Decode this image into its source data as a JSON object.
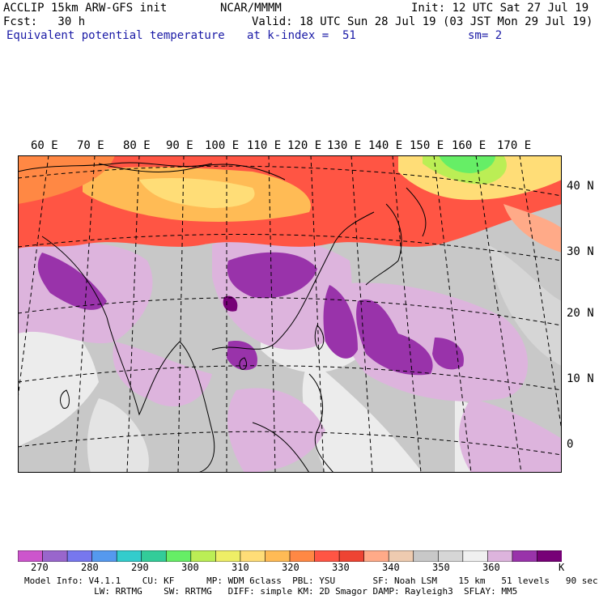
{
  "header": {
    "model": "ACCLIP 15km ARW-GFS init",
    "org": "NCAR/MMMM",
    "init": "Init: 12 UTC Sat 27 Jul 19",
    "fcst": "Fcst:   30 h",
    "valid": "Valid: 18 UTC Sun 28 Jul 19 (03 JST Mon 29 Jul 19)",
    "field": "Equivalent potential temperature",
    "level": "at k-index =  51",
    "smooth": "sm= 2"
  },
  "map": {
    "lon_labels": [
      "60 E",
      "70 E",
      "80 E",
      "90 E",
      "100 E",
      "110 E",
      "120 E",
      "130 E",
      "140 E",
      "150 E",
      "160 E",
      "170 E"
    ],
    "lat_labels": [
      "40 N",
      "30 N",
      "20 N",
      "10 N",
      "0"
    ]
  },
  "colorbar": {
    "unit": "K",
    "labels": [
      "270",
      "280",
      "290",
      "300",
      "310",
      "320",
      "330",
      "340",
      "350",
      "360"
    ],
    "colors": [
      "#cc55cc",
      "#9966cc",
      "#7777ee",
      "#5599ee",
      "#33cccc",
      "#33cc99",
      "#66ee66",
      "#bbee55",
      "#eeee66",
      "#ffdd77",
      "#ffbb55",
      "#ff8844",
      "#ff5544",
      "#ee4433",
      "#ffaa88",
      "#eecbb0",
      "#c8c8c8",
      "#d6d6d6",
      "#f0f0f0",
      "#ddb4dd",
      "#9933aa",
      "#770077"
    ]
  },
  "footer": {
    "line1": "Model Info: V4.1.1    CU: KF      MP: WDM 6class  PBL: YSU       SF: Noah LSM    15 km   51 levels   90 sec",
    "line2": "             LW: RRTMG    SW: RRTMG   DIFF: simple KM: 2D Smagor DAMP: Rayleigh3  SFLAY: MM5"
  }
}
